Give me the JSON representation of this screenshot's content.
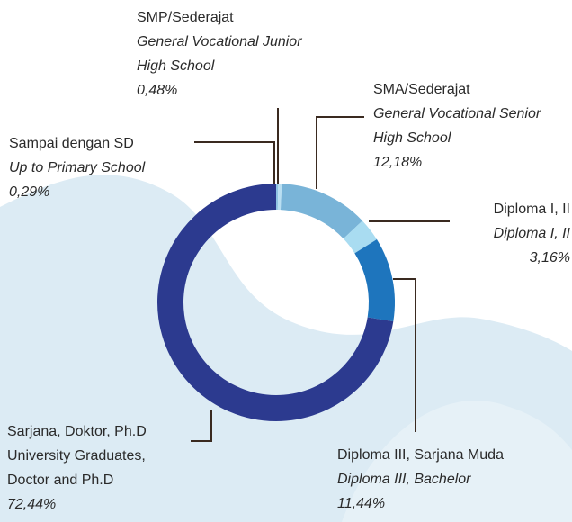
{
  "chart_data": {
    "type": "pie",
    "categories": [
      "Sampai dengan SD",
      "SMP/Sederajat",
      "SMA/Sederajat",
      "Diploma I, II",
      "Diploma III, Sarjana Muda",
      "Sarjana, Doktor, Ph.D"
    ],
    "categories_en": [
      "Up to Primary School",
      "General Vocational Junior High School",
      "General Vocational Senior High School",
      "Diploma I, II",
      "Diploma III, Bachelor",
      "University Graduates, Doctor and Ph.D"
    ],
    "values": [
      0.29,
      0.48,
      12.18,
      3.16,
      11.44,
      72.44
    ],
    "value_labels": [
      "0,29%",
      "0,48%",
      "12,18%",
      "3,16%",
      "11,44%",
      "72,44%"
    ],
    "colors": [
      "#8fc3e3",
      "#b9dff2",
      "#79b4d8",
      "#a9dcf1",
      "#1e75bd",
      "#2c3a8f"
    ],
    "donut": true
  }
}
